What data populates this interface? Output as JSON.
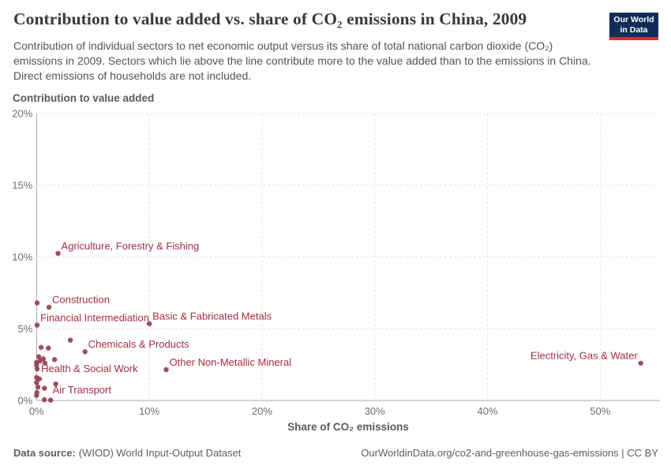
{
  "header": {
    "title": "Contribution to value added vs. share of CO₂ emissions in China, 2009",
    "subtitle": "Contribution of individual sectors to net economic output versus its share of total national carbon dioxide (CO₂) emissions in 2009. Sectors which lie above the line contribute more to the value added than to the emissions in China. Direct emissions of households are not included.",
    "logo": {
      "line1": "Our World",
      "line2": "in Data",
      "bg_color": "#112d5a",
      "bar_color": "#d0342c",
      "text_color": "#ffffff"
    }
  },
  "chart_data": {
    "type": "scatter",
    "title": "Contribution to value added vs. share of CO₂ emissions in China, 2009",
    "xlabel": "Share of CO₂ emissions",
    "ylabel": "Contribution to value added",
    "xlim": [
      0,
      55.3
    ],
    "ylim": [
      0,
      20
    ],
    "x_ticks": [
      0,
      10,
      20,
      30,
      40,
      50
    ],
    "y_ticks": [
      0,
      5,
      10,
      15,
      20
    ],
    "tick_unit": "%",
    "grid": "dashed",
    "legend": "none",
    "point_color": "#96404f",
    "label_color": "#a52c43",
    "points": [
      {
        "x": 1.9,
        "y": 10.25,
        "label": "Agriculture, Forestry & Fishing",
        "label_pos": "above"
      },
      {
        "x": 1.1,
        "y": 6.5,
        "label": "Construction",
        "label_pos": "above"
      },
      {
        "x": 0.05,
        "y": 5.25,
        "label": "Financial Intermediation",
        "label_pos": "above"
      },
      {
        "x": 10.0,
        "y": 5.35,
        "label": "Basic & Fabricated Metals",
        "label_pos": "above"
      },
      {
        "x": 4.3,
        "y": 3.4,
        "label": "Chemicals & Products",
        "label_pos": "above"
      },
      {
        "x": 11.5,
        "y": 2.15,
        "label": "Other Non-Metallic Mineral",
        "label_pos": "above"
      },
      {
        "x": 0.05,
        "y": 2.2,
        "label": "Health & Social Work",
        "label_pos": "right"
      },
      {
        "x": 1.7,
        "y": 1.15,
        "label": "Air Transport",
        "label_pos": "below"
      },
      {
        "x": 53.6,
        "y": 2.6,
        "label": "Electricity, Gas & Water",
        "label_pos": "left"
      },
      {
        "x": 0.05,
        "y": 6.8
      },
      {
        "x": 3.0,
        "y": 4.2
      },
      {
        "x": 0.4,
        "y": 3.7
      },
      {
        "x": 1.05,
        "y": 3.65
      },
      {
        "x": 0.2,
        "y": 3.05
      },
      {
        "x": 0.6,
        "y": 2.9
      },
      {
        "x": 0.3,
        "y": 2.75
      },
      {
        "x": 1.6,
        "y": 2.85
      },
      {
        "x": 0.0,
        "y": 2.65
      },
      {
        "x": 0.75,
        "y": 2.6
      },
      {
        "x": 0.0,
        "y": 2.45
      },
      {
        "x": 0.0,
        "y": 1.6
      },
      {
        "x": 0.25,
        "y": 1.5
      },
      {
        "x": 0.0,
        "y": 1.25
      },
      {
        "x": 0.12,
        "y": 0.93
      },
      {
        "x": 0.7,
        "y": 0.85
      },
      {
        "x": 0.03,
        "y": 0.55
      },
      {
        "x": 0.0,
        "y": 0.35
      },
      {
        "x": 0.7,
        "y": 0.05
      },
      {
        "x": 1.25,
        "y": 0.02
      }
    ]
  },
  "footer": {
    "source_label": "Data source:",
    "source_text": "(WIOD) World Input-Output Dataset",
    "credit": "OurWorldinData.org/co2-and-greenhouse-gas-emissions | CC BY"
  }
}
